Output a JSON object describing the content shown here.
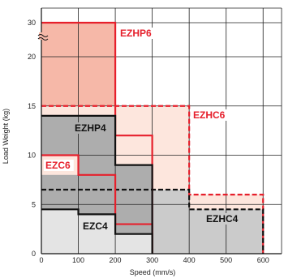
{
  "chart_data": {
    "type": "area",
    "xlabel": "Speed (mm/s)",
    "ylabel": "Load Weight (kg)",
    "xlim": [
      0,
      650
    ],
    "ylim": [
      0,
      32
    ],
    "xticks": [
      0,
      100,
      200,
      300,
      400,
      500,
      600
    ],
    "yticks": [
      0,
      5,
      10,
      15,
      20,
      30
    ],
    "y_axis_break": "between 20 and 30",
    "grid": true,
    "colors": {
      "red_fill": "#f6b8a8",
      "pink_fill": "#fde6dd",
      "dark_gray_fill": "#adadad",
      "light_gray_fill": "#e4e4e4",
      "mid_gray_fill": "#cbcbcb",
      "red_line": "#e6202c",
      "black_line": "#111111"
    },
    "series": [
      {
        "name": "EZHP6",
        "style": "solid red outline, red fill",
        "points": [
          [
            0,
            30
          ],
          [
            200,
            30
          ],
          [
            200,
            12
          ],
          [
            300,
            12
          ],
          [
            300,
            0
          ]
        ]
      },
      {
        "name": "EZHC6",
        "style": "dashed red outline, pink fill",
        "points": [
          [
            0,
            15
          ],
          [
            400,
            15
          ],
          [
            400,
            6
          ],
          [
            600,
            6
          ],
          [
            600,
            0
          ]
        ]
      },
      {
        "name": "EZHP4",
        "style": "solid black outline, dark gray fill",
        "points": [
          [
            0,
            14
          ],
          [
            200,
            14
          ],
          [
            200,
            9
          ],
          [
            300,
            9
          ],
          [
            300,
            0
          ]
        ]
      },
      {
        "name": "EZC6",
        "style": "solid red outline",
        "points": [
          [
            0,
            10
          ],
          [
            100,
            10
          ],
          [
            100,
            8
          ],
          [
            200,
            8
          ],
          [
            200,
            3
          ],
          [
            300,
            3
          ],
          [
            300,
            0
          ]
        ]
      },
      {
        "name": "EZHC4",
        "style": "dashed black outline, mid gray fill",
        "points": [
          [
            0,
            6.5
          ],
          [
            400,
            6.5
          ],
          [
            400,
            4.5
          ],
          [
            600,
            4.5
          ],
          [
            600,
            0
          ]
        ]
      },
      {
        "name": "EZC4",
        "style": "solid black outline, light gray fill",
        "points": [
          [
            0,
            4.5
          ],
          [
            100,
            4.5
          ],
          [
            100,
            4
          ],
          [
            200,
            4
          ],
          [
            200,
            2
          ],
          [
            300,
            2
          ],
          [
            300,
            0
          ]
        ]
      }
    ]
  }
}
